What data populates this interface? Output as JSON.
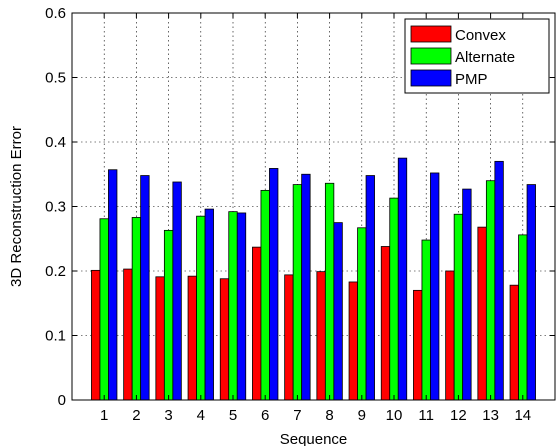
{
  "chart_data": {
    "type": "bar",
    "title": "",
    "xlabel": "Sequence",
    "ylabel": "3D Reconstruction Error",
    "categories": [
      "1",
      "2",
      "3",
      "4",
      "5",
      "6",
      "7",
      "8",
      "9",
      "10",
      "11",
      "12",
      "13",
      "14"
    ],
    "ylim": [
      0,
      0.6
    ],
    "yticks": [
      "0",
      "0.1",
      "0.2",
      "0.3",
      "0.4",
      "0.5",
      "0.6"
    ],
    "grid": true,
    "legend_position": "top-right",
    "series": [
      {
        "name": "Convex",
        "color": "#ff0000",
        "values": [
          0.201,
          0.203,
          0.191,
          0.192,
          0.188,
          0.237,
          0.194,
          0.199,
          0.183,
          0.238,
          0.17,
          0.2,
          0.268,
          0.178
        ]
      },
      {
        "name": "Alternate",
        "color": "#00ff00",
        "values": [
          0.281,
          0.283,
          0.263,
          0.285,
          0.292,
          0.325,
          0.334,
          0.336,
          0.267,
          0.313,
          0.248,
          0.288,
          0.34,
          0.256
        ]
      },
      {
        "name": "PMP",
        "color": "#0000ff",
        "values": [
          0.357,
          0.348,
          0.338,
          0.296,
          0.29,
          0.359,
          0.35,
          0.275,
          0.348,
          0.375,
          0.352,
          0.327,
          0.37,
          0.334
        ]
      }
    ]
  }
}
